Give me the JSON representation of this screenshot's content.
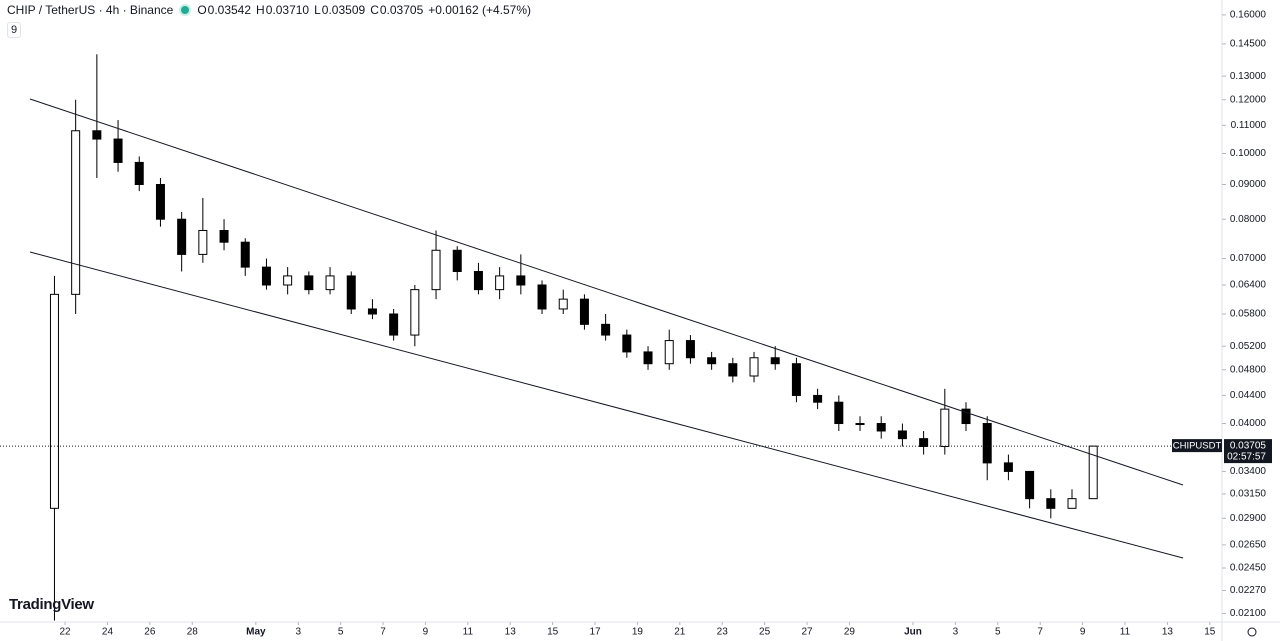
{
  "header": {
    "title": "CHIP / TetherUS · 4h · Binance",
    "ohlc": [
      {
        "key": "O",
        "value": "0.03542"
      },
      {
        "key": "H",
        "value": "0.03710"
      },
      {
        "key": "L",
        "value": "0.03509"
      },
      {
        "key": "C",
        "value": "0.03705"
      }
    ],
    "change": "+0.00162 (+4.57%)",
    "indicator": "9"
  },
  "brand": "TradingView",
  "chart_data": {
    "type": "candlestick",
    "log_scale": true,
    "ylim": [
      0.0204,
      0.1683
    ],
    "yticks": [
      {
        "value": 0.16,
        "label": "0.16000"
      },
      {
        "value": 0.145,
        "label": "0.14500"
      },
      {
        "value": 0.13,
        "label": "0.13000"
      },
      {
        "value": 0.12,
        "label": "0.12000"
      },
      {
        "value": 0.11,
        "label": "0.11000"
      },
      {
        "value": 0.1,
        "label": "0.10000"
      },
      {
        "value": 0.09,
        "label": "0.09000"
      },
      {
        "value": 0.08,
        "label": "0.08000"
      },
      {
        "value": 0.07,
        "label": "0.07000"
      },
      {
        "value": 0.064,
        "label": "0.06400"
      },
      {
        "value": 0.058,
        "label": "0.05800"
      },
      {
        "value": 0.052,
        "label": "0.05200"
      },
      {
        "value": 0.048,
        "label": "0.04800"
      },
      {
        "value": 0.044,
        "label": "0.04400"
      },
      {
        "value": 0.04,
        "label": "0.04000"
      },
      {
        "value": 0.034,
        "label": "0.03400"
      },
      {
        "value": 0.0315,
        "label": "0.03150"
      },
      {
        "value": 0.029,
        "label": "0.02900"
      },
      {
        "value": 0.0265,
        "label": "0.02650"
      },
      {
        "value": 0.0245,
        "label": "0.02450"
      },
      {
        "value": 0.0227,
        "label": "0.02270"
      },
      {
        "value": 0.021,
        "label": "0.02100"
      }
    ],
    "xlim": [
      "04-19",
      "06-15"
    ],
    "xticks": [
      {
        "value": "04-22",
        "label": "22"
      },
      {
        "value": "04-24",
        "label": "24"
      },
      {
        "value": "04-26",
        "label": "26"
      },
      {
        "value": "04-28",
        "label": "28"
      },
      {
        "value": "05-01",
        "label": "May"
      },
      {
        "value": "05-03",
        "label": "3"
      },
      {
        "value": "05-05",
        "label": "5"
      },
      {
        "value": "05-07",
        "label": "7"
      },
      {
        "value": "05-09",
        "label": "9"
      },
      {
        "value": "05-11",
        "label": "11"
      },
      {
        "value": "05-13",
        "label": "13"
      },
      {
        "value": "05-15",
        "label": "15"
      },
      {
        "value": "05-17",
        "label": "17"
      },
      {
        "value": "05-19",
        "label": "19"
      },
      {
        "value": "05-21",
        "label": "21"
      },
      {
        "value": "05-23",
        "label": "23"
      },
      {
        "value": "05-25",
        "label": "25"
      },
      {
        "value": "05-27",
        "label": "27"
      },
      {
        "value": "05-29",
        "label": "29"
      },
      {
        "value": "06-01",
        "label": "Jun"
      },
      {
        "value": "06-03",
        "label": "3"
      },
      {
        "value": "06-05",
        "label": "5"
      },
      {
        "value": "06-07",
        "label": "7"
      },
      {
        "value": "06-09",
        "label": "9"
      },
      {
        "value": "06-11",
        "label": "11"
      },
      {
        "value": "06-13",
        "label": "13"
      },
      {
        "value": "06-15",
        "label": "15"
      }
    ],
    "up_color": "#ffffff",
    "down_color": "#000000",
    "wick_color": "#000000",
    "candles": {
      "x": [
        "04-21",
        "04-22",
        "04-23",
        "04-24",
        "04-25",
        "04-26",
        "04-27",
        "04-28",
        "04-29",
        "04-30",
        "05-01",
        "05-02",
        "05-03",
        "05-04",
        "05-05",
        "05-06",
        "05-07",
        "05-08",
        "05-09",
        "05-10",
        "05-11",
        "05-12",
        "05-13",
        "05-14",
        "05-15",
        "05-16",
        "05-17",
        "05-18",
        "05-19",
        "05-20",
        "05-21",
        "05-22",
        "05-23",
        "05-24",
        "05-25",
        "05-26",
        "05-27",
        "05-28",
        "05-29",
        "05-30",
        "05-31",
        "06-01",
        "06-02",
        "06-03",
        "06-04",
        "06-05",
        "06-06",
        "06-07",
        "06-08",
        "06-09"
      ],
      "open": [
        0.03,
        0.062,
        0.108,
        0.105,
        0.097,
        0.09,
        0.08,
        0.071,
        0.077,
        0.074,
        0.068,
        0.064,
        0.066,
        0.063,
        0.066,
        0.059,
        0.058,
        0.054,
        0.063,
        0.072,
        0.067,
        0.063,
        0.066,
        0.064,
        0.059,
        0.061,
        0.056,
        0.054,
        0.051,
        0.049,
        0.053,
        0.05,
        0.049,
        0.047,
        0.05,
        0.049,
        0.044,
        0.043,
        0.04,
        0.04,
        0.039,
        0.038,
        0.037,
        0.042,
        0.04,
        0.035,
        0.034,
        0.031,
        0.03,
        0.031
      ],
      "high": [
        0.066,
        0.12,
        0.14,
        0.112,
        0.099,
        0.092,
        0.082,
        0.086,
        0.08,
        0.075,
        0.07,
        0.068,
        0.067,
        0.068,
        0.067,
        0.061,
        0.059,
        0.064,
        0.077,
        0.073,
        0.069,
        0.068,
        0.071,
        0.065,
        0.063,
        0.062,
        0.058,
        0.055,
        0.052,
        0.055,
        0.054,
        0.051,
        0.05,
        0.051,
        0.052,
        0.05,
        0.045,
        0.044,
        0.041,
        0.041,
        0.04,
        0.039,
        0.045,
        0.043,
        0.041,
        0.036,
        0.034,
        0.032,
        0.032,
        0.037
      ],
      "low": [
        0.0205,
        0.058,
        0.092,
        0.094,
        0.088,
        0.078,
        0.067,
        0.069,
        0.072,
        0.066,
        0.063,
        0.062,
        0.062,
        0.062,
        0.058,
        0.057,
        0.053,
        0.052,
        0.061,
        0.065,
        0.062,
        0.061,
        0.062,
        0.058,
        0.058,
        0.055,
        0.053,
        0.05,
        0.048,
        0.048,
        0.049,
        0.048,
        0.046,
        0.046,
        0.048,
        0.043,
        0.042,
        0.039,
        0.039,
        0.038,
        0.037,
        0.036,
        0.036,
        0.039,
        0.033,
        0.033,
        0.03,
        0.029,
        0.03,
        0.031
      ],
      "close": [
        0.062,
        0.108,
        0.105,
        0.097,
        0.09,
        0.08,
        0.071,
        0.077,
        0.074,
        0.068,
        0.064,
        0.066,
        0.063,
        0.066,
        0.059,
        0.058,
        0.054,
        0.063,
        0.072,
        0.067,
        0.063,
        0.066,
        0.064,
        0.059,
        0.061,
        0.056,
        0.054,
        0.051,
        0.049,
        0.053,
        0.05,
        0.049,
        0.047,
        0.05,
        0.049,
        0.044,
        0.043,
        0.04,
        0.04,
        0.039,
        0.038,
        0.037,
        0.042,
        0.04,
        0.035,
        0.034,
        0.031,
        0.03,
        0.031,
        0.03705
      ]
    },
    "last_price": {
      "symbol": "CHIPUSDT",
      "value": 0.03705,
      "countdown": "02:57:57"
    }
  }
}
